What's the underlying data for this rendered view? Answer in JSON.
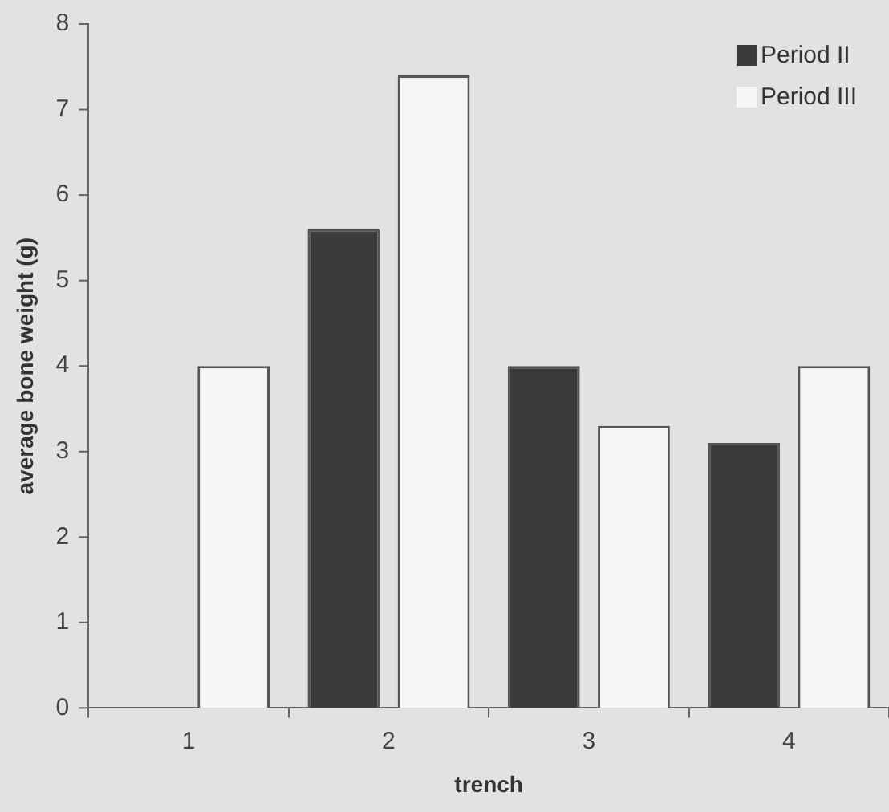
{
  "chart_data": {
    "type": "bar",
    "xlabel": "trench",
    "ylabel": "average bone weight (g)",
    "categories": [
      "1",
      "2",
      "3",
      "4"
    ],
    "series": [
      {
        "name": "Period II",
        "color": "#3c3a3c",
        "values": [
          null,
          5.6,
          4.0,
          3.1
        ]
      },
      {
        "name": "Period III",
        "color": "#f7f6f7",
        "values": [
          4.0,
          7.4,
          3.3,
          4.0
        ]
      }
    ],
    "ylim": [
      0,
      8
    ],
    "yticks": [
      0,
      1,
      2,
      3,
      4,
      5,
      6,
      7,
      8
    ],
    "grid": false,
    "legend": "top right"
  }
}
